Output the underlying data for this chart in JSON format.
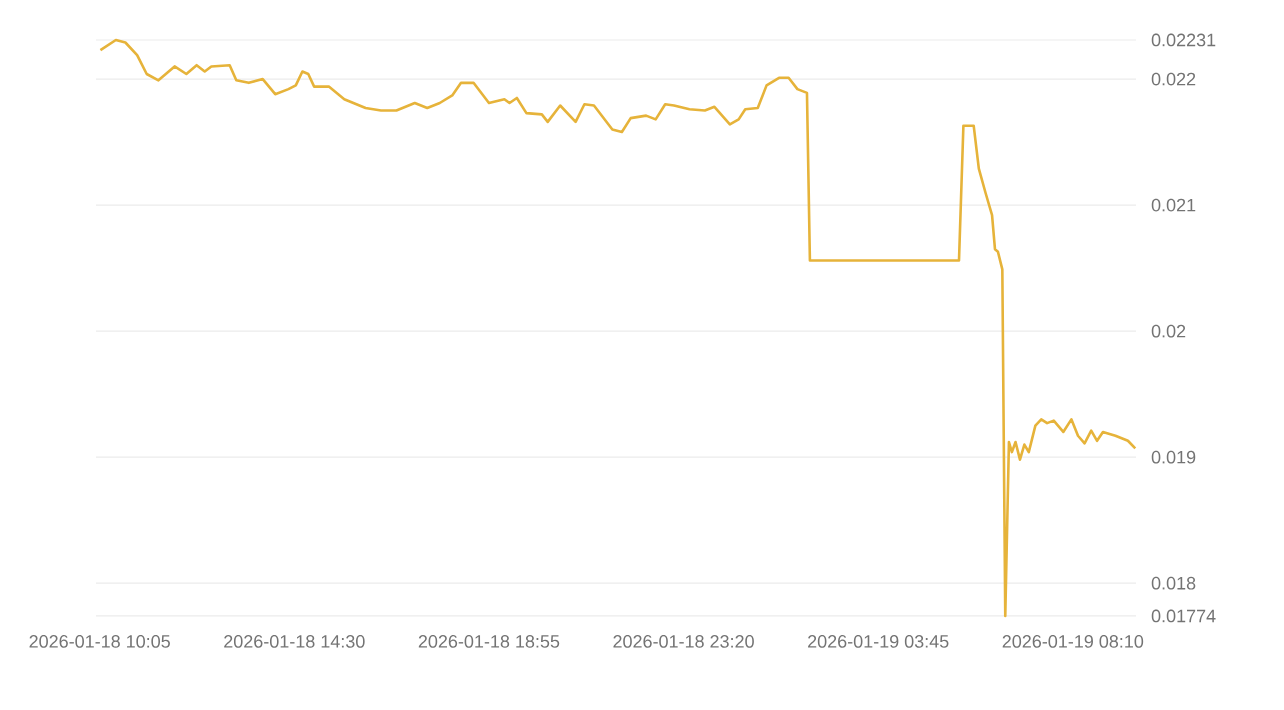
{
  "chart_data": {
    "type": "line",
    "x": [
      "2026-01-18T10:06",
      "2026-01-18T10:27",
      "2026-01-18T10:40",
      "2026-01-18T10:56",
      "2026-01-18T11:09",
      "2026-01-18T11:25",
      "2026-01-18T11:47",
      "2026-01-18T12:03",
      "2026-01-18T12:17",
      "2026-01-18T12:28",
      "2026-01-18T12:37",
      "2026-01-18T13:02",
      "2026-01-18T13:11",
      "2026-01-18T13:28",
      "2026-01-18T13:47",
      "2026-01-18T14:04",
      "2026-01-18T14:22",
      "2026-01-18T14:32",
      "2026-01-18T14:41",
      "2026-01-18T14:49",
      "2026-01-18T14:57",
      "2026-01-18T15:17",
      "2026-01-18T15:38",
      "2026-01-18T16:07",
      "2026-01-18T16:28",
      "2026-01-18T16:49",
      "2026-01-18T17:14",
      "2026-01-18T17:31",
      "2026-01-18T17:48",
      "2026-01-18T18:05",
      "2026-01-18T18:17",
      "2026-01-18T18:34",
      "2026-01-18T18:55",
      "2026-01-18T19:16",
      "2026-01-18T19:23",
      "2026-01-18T19:33",
      "2026-01-18T19:46",
      "2026-01-18T20:07",
      "2026-01-18T20:15",
      "2026-01-18T20:32",
      "2026-01-18T20:53",
      "2026-01-18T21:05",
      "2026-01-18T21:18",
      "2026-01-18T21:43",
      "2026-01-18T21:56",
      "2026-01-18T22:08",
      "2026-01-18T22:29",
      "2026-01-18T22:42",
      "2026-01-18T22:55",
      "2026-01-18T23:07",
      "2026-01-18T23:28",
      "2026-01-18T23:49",
      "2026-01-19T00:02",
      "2026-01-19T00:23",
      "2026-01-19T00:35",
      "2026-01-19T00:44",
      "2026-01-19T01:01",
      "2026-01-19T01:13",
      "2026-01-19T01:30",
      "2026-01-19T01:43",
      "2026-01-19T01:55",
      "2026-01-19T02:08",
      "2026-01-19T02:12",
      "2026-01-19T05:35",
      "2026-01-19T05:41",
      "2026-01-19T05:55",
      "2026-01-19T06:02",
      "2026-01-19T06:11",
      "2026-01-19T06:20",
      "2026-01-19T06:24",
      "2026-01-19T06:28",
      "2026-01-19T06:34",
      "2026-01-19T06:38",
      "2026-01-19T06:43",
      "2026-01-19T06:47",
      "2026-01-19T06:52",
      "2026-01-19T06:58",
      "2026-01-19T07:04",
      "2026-01-19T07:10",
      "2026-01-19T07:19",
      "2026-01-19T07:27",
      "2026-01-19T07:35",
      "2026-01-19T07:44",
      "2026-01-19T07:57",
      "2026-01-19T08:08",
      "2026-01-19T08:17",
      "2026-01-19T08:26",
      "2026-01-19T08:35",
      "2026-01-19T08:43",
      "2026-01-19T08:51",
      "2026-01-19T09:08",
      "2026-01-19T09:25",
      "2026-01-19T09:35"
    ],
    "series": [
      {
        "color": "#e6b33a",
        "values": [
          0.02223,
          0.02231,
          0.02229,
          0.02219,
          0.02204,
          0.02199,
          0.0221,
          0.02204,
          0.02211,
          0.02206,
          0.0221,
          0.02211,
          0.02199,
          0.02197,
          0.022,
          0.02188,
          0.02192,
          0.02195,
          0.02206,
          0.02204,
          0.02194,
          0.02194,
          0.02184,
          0.02177,
          0.02175,
          0.02175,
          0.02181,
          0.02177,
          0.02181,
          0.02187,
          0.02197,
          0.02197,
          0.02181,
          0.02184,
          0.02181,
          0.02185,
          0.02173,
          0.02172,
          0.02166,
          0.02179,
          0.02166,
          0.0218,
          0.02179,
          0.0216,
          0.02158,
          0.02169,
          0.02171,
          0.02168,
          0.0218,
          0.02179,
          0.02176,
          0.02175,
          0.02178,
          0.02164,
          0.02168,
          0.02176,
          0.02177,
          0.02195,
          0.02201,
          0.02201,
          0.02192,
          0.02189,
          0.02056,
          0.02056,
          0.02163,
          0.02163,
          0.02129,
          0.0211,
          0.02092,
          0.02065,
          0.02063,
          0.02049,
          0.01774,
          0.01912,
          0.01904,
          0.01912,
          0.01898,
          0.0191,
          0.01904,
          0.01925,
          0.0193,
          0.01927,
          0.01929,
          0.0192,
          0.0193,
          0.01917,
          0.01911,
          0.01921,
          0.01913,
          0.0192,
          0.01917,
          0.01913,
          0.01907
        ]
      }
    ],
    "xlim": [
      "2026-01-18T10:00",
      "2026-01-19T09:36"
    ],
    "xticks": [
      {
        "value": "2026-01-18T10:05",
        "label": "2026-01-18 10:05"
      },
      {
        "value": "2026-01-18T14:30",
        "label": "2026-01-18 14:30"
      },
      {
        "value": "2026-01-18T18:55",
        "label": "2026-01-18 18:55"
      },
      {
        "value": "2026-01-18T23:20",
        "label": "2026-01-18 23:20"
      },
      {
        "value": "2026-01-19T03:45",
        "label": "2026-01-19 03:45"
      },
      {
        "value": "2026-01-19T08:10",
        "label": "2026-01-19 08:10"
      }
    ],
    "ylim": [
      0.01774,
      0.02231
    ],
    "yticks": [
      0.01774,
      0.018,
      0.019,
      0.02,
      0.021,
      0.022,
      0.02231
    ],
    "grid": "y",
    "legend": false,
    "marker": "none",
    "line_style": "solid"
  }
}
